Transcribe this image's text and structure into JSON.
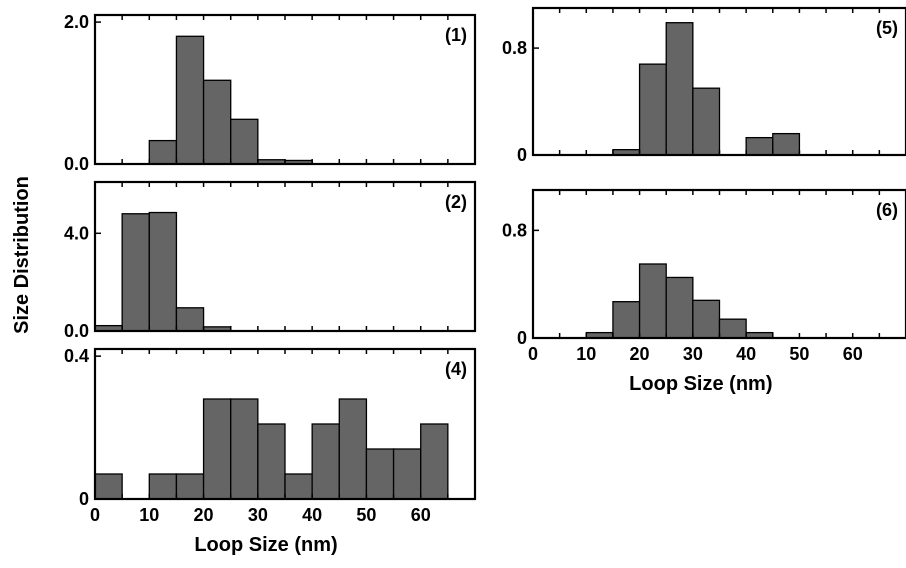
{
  "figure": {
    "ylabel": "Size Distribution",
    "colors": {
      "bar_fill": "#656565",
      "bar_stroke": "#000000",
      "axes": "#000000"
    }
  },
  "chart_data": [
    {
      "type": "bar",
      "panel": "(1)",
      "x": [
        10,
        15,
        20,
        25,
        30,
        35
      ],
      "values": [
        0.33,
        1.8,
        1.18,
        0.63,
        0.06,
        0.05
      ],
      "bin_width": 5,
      "xlim": [
        0,
        70
      ],
      "ylim": [
        0,
        2.1
      ],
      "yticks": [
        {
          "value": 0,
          "label": "0.0"
        },
        {
          "value": 2.0,
          "label": "2.0"
        }
      ],
      "xticks": [],
      "xlabel": "",
      "grid": false
    },
    {
      "type": "bar",
      "panel": "(2)",
      "x": [
        0,
        5,
        10,
        15,
        20,
        25
      ],
      "values": [
        0.22,
        4.8,
        4.85,
        0.95,
        0.17,
        0.0
      ],
      "bin_width": 5,
      "xlim": [
        0,
        70
      ],
      "ylim": [
        0,
        6.1
      ],
      "yticks": [
        {
          "value": 0,
          "label": "0.0"
        },
        {
          "value": 4.0,
          "label": "4.0"
        }
      ],
      "xticks": [],
      "xlabel": "",
      "grid": false
    },
    {
      "type": "bar",
      "panel": "(4)",
      "x": [
        0,
        5,
        10,
        15,
        20,
        25,
        30,
        35,
        40,
        45,
        50,
        55,
        60
      ],
      "values": [
        0.07,
        0.0,
        0.07,
        0.07,
        0.28,
        0.28,
        0.21,
        0.07,
        0.21,
        0.28,
        0.14,
        0.14,
        0.21
      ],
      "bin_width": 5,
      "xlim": [
        0,
        70
      ],
      "ylim": [
        0,
        0.42
      ],
      "yticks": [
        {
          "value": 0,
          "label": "0"
        },
        {
          "value": 0.4,
          "label": "0.4"
        }
      ],
      "xticks": [
        {
          "value": 0,
          "label": "0"
        },
        {
          "value": 10,
          "label": "10"
        },
        {
          "value": 20,
          "label": "20"
        },
        {
          "value": 30,
          "label": "30"
        },
        {
          "value": 40,
          "label": "40"
        },
        {
          "value": 50,
          "label": "50"
        },
        {
          "value": 60,
          "label": "60"
        }
      ],
      "xlabel": "Loop Size (nm)",
      "grid": false
    },
    {
      "type": "bar",
      "panel": "(5)",
      "x": [
        15,
        20,
        25,
        30,
        35,
        40,
        45
      ],
      "values": [
        0.04,
        0.68,
        0.99,
        0.5,
        0.0,
        0.13,
        0.16
      ],
      "bin_width": 5,
      "xlim": [
        0,
        70
      ],
      "ylim": [
        0,
        1.1
      ],
      "yticks": [
        {
          "value": 0,
          "label": "0"
        },
        {
          "value": 0.8,
          "label": "0.8"
        }
      ],
      "xticks": [],
      "xlabel": "",
      "grid": false
    },
    {
      "type": "bar",
      "panel": "(6)",
      "x": [
        10,
        15,
        20,
        25,
        30,
        35,
        40
      ],
      "values": [
        0.04,
        0.27,
        0.55,
        0.45,
        0.28,
        0.14,
        0.04
      ],
      "bin_width": 5,
      "xlim": [
        0,
        70
      ],
      "ylim": [
        0,
        1.1
      ],
      "yticks": [
        {
          "value": 0,
          "label": "0"
        },
        {
          "value": 0.8,
          "label": "0.8"
        }
      ],
      "xticks": [
        {
          "value": 0,
          "label": "0"
        },
        {
          "value": 10,
          "label": "10"
        },
        {
          "value": 20,
          "label": "20"
        },
        {
          "value": 30,
          "label": "30"
        },
        {
          "value": 40,
          "label": "40"
        },
        {
          "value": 50,
          "label": "50"
        },
        {
          "value": 60,
          "label": "60"
        }
      ],
      "xlabel": "Loop Size (nm)",
      "grid": false
    }
  ]
}
